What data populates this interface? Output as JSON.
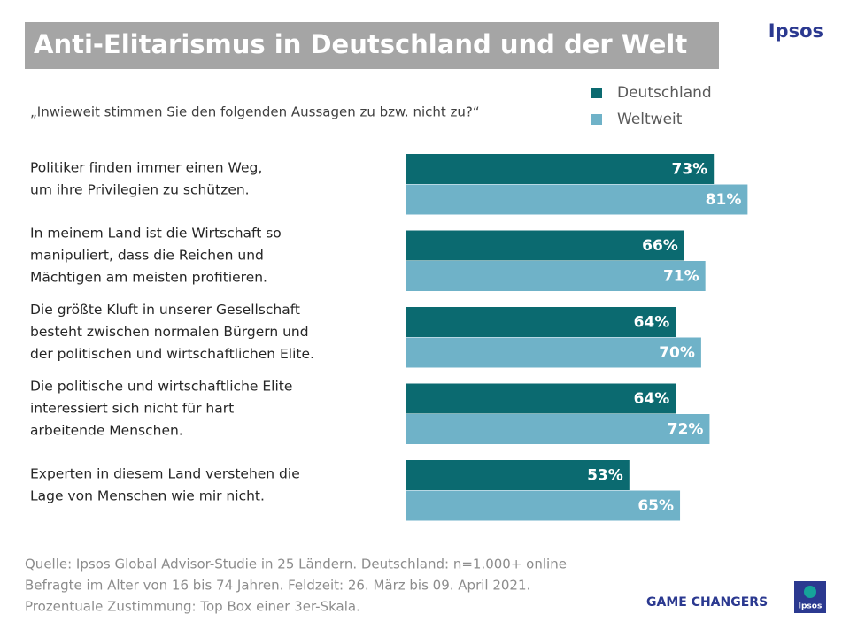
{
  "chart_data": {
    "type": "barh",
    "title": "Anti-Elitarismus in Deutschland und der Welt",
    "subtitle": "„Inwieweit stimmen Sie den folgenden Aussagen zu bzw. nicht zu?“",
    "categories": [
      [
        "Politiker finden immer einen Weg,",
        "um ihre Privilegien zu schützen."
      ],
      [
        "In meinem Land ist die Wirtschaft so",
        "manipuliert, dass die Reichen und",
        "Mächtigen am meisten profitieren."
      ],
      [
        "Die größte Kluft in unserer Gesellschaft",
        "besteht zwischen normalen Bürgern und",
        "der politischen und wirtschaftlichen Elite."
      ],
      [
        "Die politische und wirtschaftliche Elite",
        "interessiert sich nicht für hart",
        "arbeitende Menschen."
      ],
      [
        "Experten in diesem Land verstehen die",
        "Lage von Menschen wie mir nicht."
      ]
    ],
    "series": [
      {
        "name": "Deutschland",
        "color": "#0b6a70",
        "values": [
          73,
          66,
          64,
          64,
          53
        ],
        "value_labels": [
          "73%",
          "66%",
          "64%",
          "64%",
          "53%"
        ]
      },
      {
        "name": "Weltweit",
        "color": "#6fb2c8",
        "values": [
          81,
          71,
          70,
          72,
          65
        ],
        "value_labels": [
          "81%",
          "71%",
          "70%",
          "72%",
          "65%"
        ]
      }
    ],
    "xlim": [
      0,
      100
    ],
    "legend": "top-right",
    "source": [
      "Quelle: Ipsos Global Advisor-Studie in 25 Ländern. Deutschland: n=1.000+ online",
      "Befragte im Alter von 16 bis 74 Jahren. Feldzeit: 26. März bis 09. April 2021.",
      "Prozentuale Zustimmung: Top Box einer 3er-Skala."
    ]
  },
  "brand": {
    "logo": "Ipsos",
    "tagline": "GAME CHANGERS",
    "badge": "Ipsos"
  }
}
